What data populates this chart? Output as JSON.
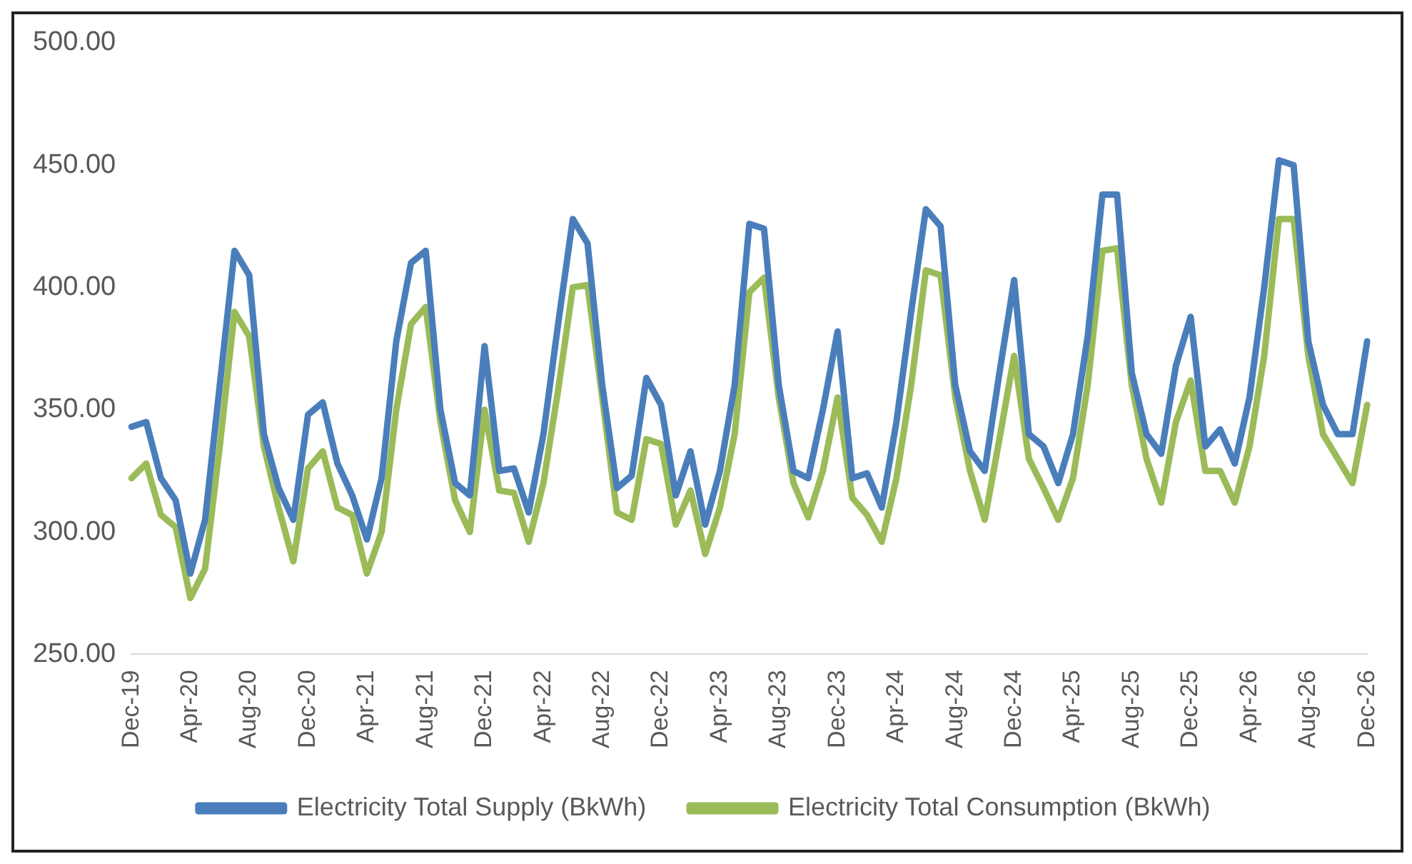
{
  "chart_data": {
    "type": "line",
    "categories": [
      "Dec-19",
      null,
      null,
      null,
      "Apr-20",
      null,
      null,
      null,
      "Aug-20",
      null,
      null,
      null,
      "Dec-20",
      null,
      null,
      null,
      "Apr-21",
      null,
      null,
      null,
      "Aug-21",
      null,
      null,
      null,
      "Dec-21",
      null,
      null,
      null,
      "Apr-22",
      null,
      null,
      null,
      "Aug-22",
      null,
      null,
      null,
      "Dec-22",
      null,
      null,
      null,
      "Apr-23",
      null,
      null,
      null,
      "Aug-23",
      null,
      null,
      null,
      "Dec-23",
      null,
      null,
      null,
      "Apr-24",
      null,
      null,
      null,
      "Aug-24",
      null,
      null,
      null,
      "Dec-24",
      null,
      null,
      null,
      "Apr-25",
      null,
      null,
      null,
      "Aug-25",
      null,
      null,
      null,
      "Dec-25",
      null,
      null,
      null,
      "Apr-26",
      null,
      null,
      null,
      "Aug-26",
      null,
      null,
      null,
      "Dec-26"
    ],
    "series": [
      {
        "name": "Electricity Total Supply (BkWh)",
        "color": "#4a7ebb",
        "values": [
          343,
          345,
          322,
          313,
          283,
          305,
          360,
          415,
          405,
          340,
          318,
          305,
          348,
          353,
          328,
          315,
          297,
          322,
          378,
          410,
          415,
          350,
          320,
          315,
          376,
          325,
          326,
          308,
          340,
          385,
          428,
          418,
          360,
          318,
          323,
          363,
          352,
          315,
          333,
          303,
          325,
          360,
          426,
          424,
          360,
          325,
          322,
          350,
          382,
          322,
          324,
          310,
          345,
          390,
          432,
          425,
          360,
          333,
          325,
          365,
          403,
          340,
          335,
          320,
          340,
          380,
          438,
          438,
          365,
          340,
          332,
          368,
          388,
          335,
          342,
          328,
          355,
          400,
          452,
          450,
          378,
          352,
          340,
          340,
          378
        ]
      },
      {
        "name": "Electricity Total Consumption (BkWh)",
        "color": "#9bbb59",
        "values": [
          322,
          328,
          307,
          302,
          273,
          285,
          335,
          390,
          380,
          335,
          310,
          288,
          326,
          333,
          310,
          307,
          283,
          300,
          350,
          385,
          392,
          345,
          313,
          300,
          350,
          317,
          316,
          296,
          320,
          358,
          400,
          401,
          355,
          308,
          305,
          338,
          336,
          303,
          317,
          291,
          310,
          340,
          398,
          404,
          355,
          320,
          306,
          325,
          355,
          314,
          307,
          296,
          322,
          360,
          407,
          405,
          355,
          325,
          305,
          338,
          372,
          330,
          318,
          305,
          322,
          360,
          415,
          416,
          360,
          330,
          312,
          345,
          362,
          325,
          325,
          312,
          335,
          372,
          428,
          428,
          372,
          340,
          330,
          320,
          352
        ]
      }
    ],
    "ylim": [
      250,
      500
    ],
    "yticks": [
      {
        "value": 250,
        "label": "250.00"
      },
      {
        "value": 300,
        "label": "300.00"
      },
      {
        "value": 350,
        "label": "350.00"
      },
      {
        "value": 400,
        "label": "400.00"
      },
      {
        "value": 450,
        "label": "450.00"
      },
      {
        "value": 500,
        "label": "500.00"
      }
    ],
    "grid": false,
    "legend": "bottom",
    "marker": "none",
    "line_style": "solid"
  }
}
